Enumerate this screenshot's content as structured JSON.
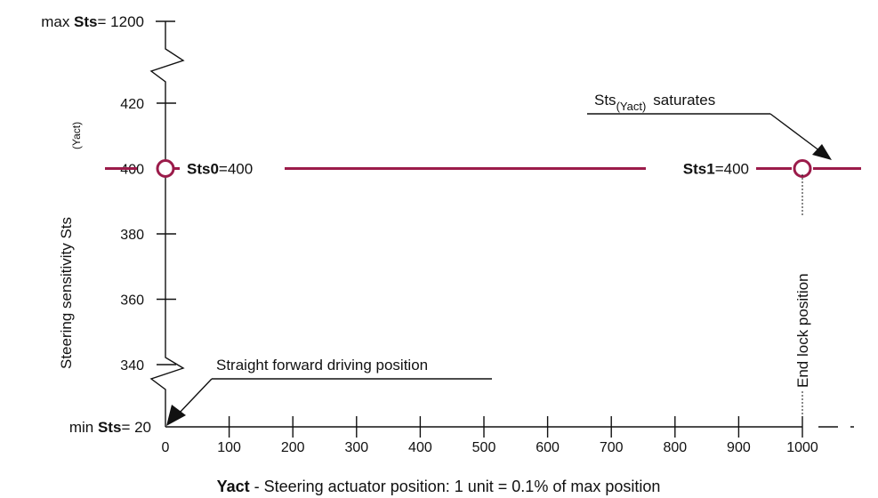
{
  "colors": {
    "series": "#9b1b4a",
    "axis": "#111111",
    "background": "#ffffff"
  },
  "chart_data": {
    "type": "line",
    "title": "",
    "xlabel": {
      "bold": "Yact",
      "rest": " - Steering actuator position: 1 unit = 0.1% of max position"
    },
    "ylabel": {
      "main": "Steering sensitivity Sts",
      "sub": "(Yact)"
    },
    "x_ticks": [
      "0",
      "100",
      "200",
      "300",
      "400",
      "500",
      "600",
      "700",
      "800",
      "900",
      "1000"
    ],
    "y_ticks": [
      "340",
      "360",
      "380",
      "400",
      "420"
    ],
    "y_max_label": {
      "pre": "max ",
      "bold": "Sts",
      "post": "= 1200"
    },
    "y_min_label": {
      "pre": "min ",
      "bold": "Sts",
      "post": "= 20"
    },
    "xlim": [
      0,
      1000
    ],
    "ylim_displayed": [
      340,
      420
    ],
    "axis_breaks": "y axis broken between 20 and 340 and between 420 and 1200",
    "series": [
      {
        "x": [
          0,
          1000
        ],
        "y": [
          400,
          400
        ]
      }
    ],
    "points": [
      {
        "x": 0,
        "y": 400,
        "label_bold": "Sts0",
        "label_rest": "=400"
      },
      {
        "x": 1000,
        "y": 400,
        "label_bold": "Sts1",
        "label_rest": "=400"
      }
    ],
    "annotations": {
      "saturates": {
        "main": "Sts",
        "sub": "(Yact)",
        "rest": "saturates"
      },
      "straight": "Straight forward driving position",
      "end_lock": "End lock position"
    },
    "grid": false
  }
}
